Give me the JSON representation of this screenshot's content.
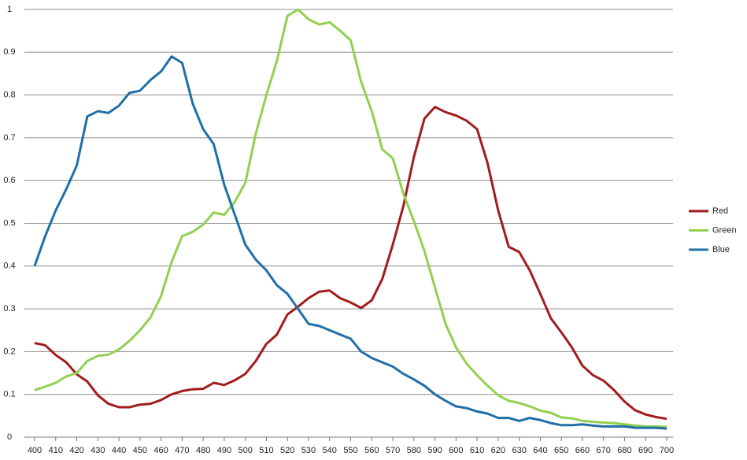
{
  "chart_data": {
    "type": "line",
    "x": [
      400,
      405,
      410,
      415,
      420,
      425,
      430,
      435,
      440,
      445,
      450,
      455,
      460,
      465,
      470,
      475,
      480,
      485,
      490,
      495,
      500,
      505,
      510,
      515,
      520,
      525,
      530,
      535,
      540,
      545,
      550,
      555,
      560,
      565,
      570,
      575,
      580,
      585,
      590,
      595,
      600,
      605,
      610,
      615,
      620,
      625,
      630,
      635,
      640,
      645,
      650,
      655,
      660,
      665,
      670,
      675,
      680,
      685,
      690,
      695,
      700
    ],
    "series": [
      {
        "name": "Red",
        "color": "#a11c1c",
        "values": [
          0.22,
          0.215,
          0.192,
          0.175,
          0.147,
          0.13,
          0.098,
          0.078,
          0.07,
          0.07,
          0.076,
          0.078,
          0.087,
          0.1,
          0.108,
          0.112,
          0.113,
          0.127,
          0.122,
          0.133,
          0.148,
          0.178,
          0.218,
          0.24,
          0.287,
          0.305,
          0.325,
          0.34,
          0.343,
          0.325,
          0.315,
          0.302,
          0.32,
          0.37,
          0.45,
          0.54,
          0.655,
          0.745,
          0.772,
          0.76,
          0.752,
          0.74,
          0.72,
          0.64,
          0.53,
          0.445,
          0.433,
          0.39,
          0.335,
          0.278,
          0.245,
          0.21,
          0.167,
          0.145,
          0.132,
          0.11,
          0.083,
          0.063,
          0.053,
          0.047,
          0.043
        ]
      },
      {
        "name": "Green",
        "color": "#92d050",
        "values": [
          0.11,
          0.118,
          0.127,
          0.142,
          0.15,
          0.178,
          0.19,
          0.193,
          0.205,
          0.225,
          0.25,
          0.28,
          0.33,
          0.41,
          0.47,
          0.48,
          0.497,
          0.525,
          0.52,
          0.55,
          0.595,
          0.71,
          0.8,
          0.88,
          0.985,
          1.0,
          0.977,
          0.965,
          0.97,
          0.95,
          0.928,
          0.83,
          0.762,
          0.673,
          0.652,
          0.57,
          0.505,
          0.435,
          0.35,
          0.265,
          0.21,
          0.172,
          0.145,
          0.12,
          0.098,
          0.085,
          0.08,
          0.072,
          0.062,
          0.057,
          0.046,
          0.044,
          0.038,
          0.036,
          0.034,
          0.033,
          0.03,
          0.027,
          0.025,
          0.025,
          0.024
        ]
      },
      {
        "name": "Blue",
        "color": "#1f6fa8",
        "values": [
          0.4,
          0.47,
          0.53,
          0.58,
          0.635,
          0.75,
          0.762,
          0.758,
          0.775,
          0.805,
          0.81,
          0.835,
          0.855,
          0.89,
          0.875,
          0.78,
          0.72,
          0.685,
          0.59,
          0.52,
          0.45,
          0.415,
          0.39,
          0.355,
          0.335,
          0.3,
          0.265,
          0.26,
          0.25,
          0.24,
          0.23,
          0.2,
          0.185,
          0.175,
          0.165,
          0.148,
          0.135,
          0.12,
          0.1,
          0.085,
          0.072,
          0.068,
          0.06,
          0.055,
          0.045,
          0.045,
          0.038,
          0.045,
          0.04,
          0.033,
          0.028,
          0.028,
          0.03,
          0.027,
          0.025,
          0.025,
          0.025,
          0.022,
          0.022,
          0.022,
          0.02
        ]
      }
    ],
    "xlim": [
      400,
      700
    ],
    "xticks": [
      400,
      410,
      420,
      430,
      440,
      450,
      460,
      470,
      480,
      490,
      500,
      510,
      520,
      530,
      540,
      550,
      560,
      570,
      580,
      590,
      600,
      610,
      620,
      630,
      640,
      650,
      660,
      670,
      680,
      690,
      700
    ],
    "ylim": [
      0,
      1
    ],
    "yticks": [
      0,
      0.1,
      0.2,
      0.3,
      0.4,
      0.5,
      0.6,
      0.7,
      0.8,
      0.9,
      1
    ],
    "grid": true,
    "legend": "right"
  }
}
